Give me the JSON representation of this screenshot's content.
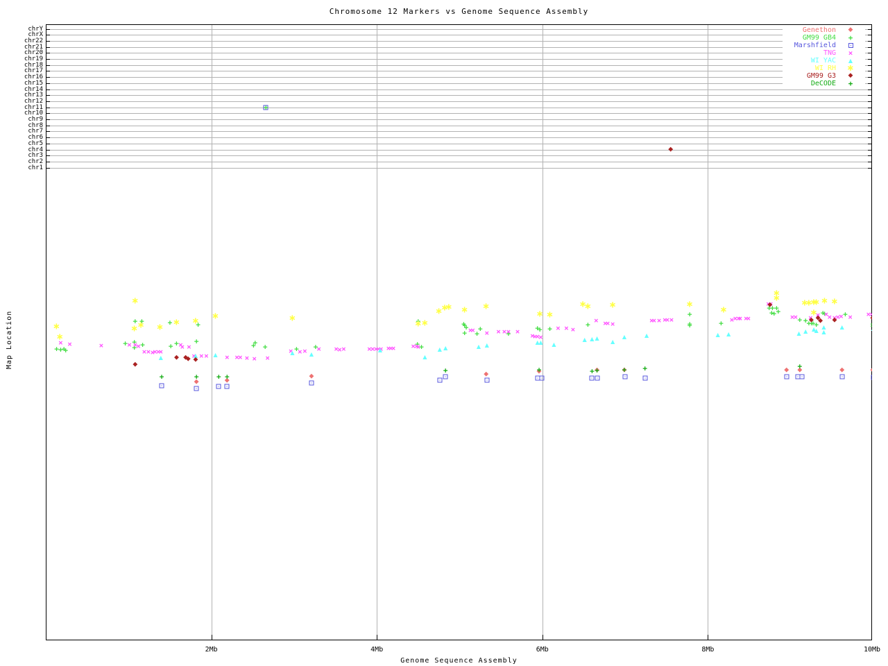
{
  "page_title": "Chromosome 12 Markers vs Genome Sequence Assembly",
  "chart_data": {
    "type": "scatter",
    "title": "Chromosome 12 Markers vs Genome Sequence Assembly",
    "xlabel": "Genome Sequence Assembly",
    "ylabel": "Map Location",
    "x_unit": "Mb",
    "xlim": [
      0,
      10
    ],
    "grid": "on",
    "legend_position": "top-right",
    "x_ticks": [
      {
        "label": "2Mb",
        "mb": 2
      },
      {
        "label": "4Mb",
        "mb": 4
      },
      {
        "label": "6Mb",
        "mb": 6
      },
      {
        "label": "8Mb",
        "mb": 8
      },
      {
        "label": "10Mb",
        "mb": 10
      }
    ],
    "y_axis_note": "Map Location axis has no numeric scale; point y values are screen pixels (top of image = 0). Top band is a categorical chromosome ladder.",
    "chrom_rows": [
      "chrY",
      "chrX",
      "chr22",
      "chr21",
      "chr20",
      "chr19",
      "chr18",
      "chr17",
      "chr16",
      "chr15",
      "chr14",
      "chr13",
      "chr12",
      "chr11",
      "chr10",
      "chr9",
      "chr8",
      "chr7",
      "chr6",
      "chr5",
      "chr4",
      "chr3",
      "chr2",
      "chr1"
    ],
    "series": [
      {
        "name": "Genethon",
        "color": "#ee7272",
        "marker": "diamond",
        "points": [
          [
            1.82,
            551
          ],
          [
            2.19,
            549
          ],
          [
            3.21,
            543
          ],
          [
            5.32,
            540
          ],
          [
            5.96,
            536
          ],
          [
            6.66,
            534
          ],
          [
            6.99,
            534
          ],
          [
            8.95,
            534
          ],
          [
            9.11,
            534
          ],
          [
            9.62,
            534
          ],
          [
            9.99,
            534
          ]
        ]
      },
      {
        "name": "GM99 GB4",
        "color": "#44dd44",
        "marker": "plus",
        "points": [
          [
            0.13,
            503
          ],
          [
            0.18,
            504
          ],
          [
            0.22,
            503
          ],
          [
            0.24,
            505
          ],
          [
            0.96,
            495
          ],
          [
            1.07,
            493
          ],
          [
            1.07,
            501
          ],
          [
            1.17,
            497
          ],
          [
            1.08,
            463
          ],
          [
            1.16,
            463
          ],
          [
            1.5,
            465
          ],
          [
            1.51,
            499
          ],
          [
            1.58,
            495
          ],
          [
            1.84,
            468
          ],
          [
            1.82,
            492
          ],
          [
            2.51,
            498
          ],
          [
            2.53,
            494
          ],
          [
            2.65,
            500
          ],
          [
            3.03,
            503
          ],
          [
            3.26,
            500
          ],
          [
            4.49,
            496
          ],
          [
            4.54,
            500
          ],
          [
            4.5,
            463
          ],
          [
            5.05,
            467
          ],
          [
            5.06,
            469
          ],
          [
            5.08,
            472
          ],
          [
            5.06,
            480
          ],
          [
            5.21,
            481
          ],
          [
            5.25,
            474
          ],
          [
            5.59,
            481
          ],
          [
            5.94,
            473
          ],
          [
            5.97,
            475
          ],
          [
            6.09,
            474
          ],
          [
            6.55,
            468
          ],
          [
            7.78,
            453
          ],
          [
            7.78,
            467
          ],
          [
            7.78,
            469
          ],
          [
            8.16,
            466
          ],
          [
            8.74,
            444
          ],
          [
            8.78,
            444
          ],
          [
            8.83,
            444
          ],
          [
            8.77,
            451
          ],
          [
            8.8,
            452
          ],
          [
            8.85,
            449
          ],
          [
            9.11,
            461
          ],
          [
            9.18,
            462
          ],
          [
            9.22,
            466
          ],
          [
            9.25,
            466
          ],
          [
            9.27,
            466
          ],
          [
            9.31,
            468
          ],
          [
            9.39,
            451
          ],
          [
            9.41,
            452
          ],
          [
            9.66,
            453
          ],
          [
            9.99,
            467
          ],
          [
            9.99,
            470
          ]
        ]
      },
      {
        "name": "Marshfield",
        "color": "#5555dd",
        "marker": "square",
        "points": [
          [
            1.4,
            556
          ],
          [
            1.82,
            560
          ],
          [
            2.09,
            557
          ],
          [
            2.19,
            557
          ],
          [
            3.21,
            552
          ],
          [
            4.76,
            548
          ],
          [
            4.83,
            543
          ],
          [
            5.33,
            548
          ],
          [
            5.94,
            545
          ],
          [
            5.99,
            545
          ],
          [
            6.6,
            545
          ],
          [
            6.66,
            545
          ],
          [
            7.0,
            543
          ],
          [
            7.24,
            545
          ],
          [
            8.95,
            543
          ],
          [
            9.09,
            543
          ],
          [
            9.14,
            543
          ],
          [
            9.62,
            543
          ],
          [
            10.0,
            544
          ]
        ]
      },
      {
        "name": "TNG",
        "color": "#ff55ff",
        "marker": "cross",
        "points": [
          [
            0.18,
            494
          ],
          [
            0.29,
            496
          ],
          [
            0.67,
            498
          ],
          [
            1.01,
            497
          ],
          [
            1.08,
            497
          ],
          [
            1.12,
            499
          ],
          [
            1.19,
            507
          ],
          [
            1.24,
            507
          ],
          [
            1.29,
            508
          ],
          [
            1.32,
            507
          ],
          [
            1.36,
            507
          ],
          [
            1.39,
            507
          ],
          [
            1.63,
            497
          ],
          [
            1.65,
            500
          ],
          [
            1.73,
            500
          ],
          [
            1.79,
            513
          ],
          [
            1.88,
            513
          ],
          [
            1.94,
            513
          ],
          [
            2.19,
            515
          ],
          [
            2.31,
            515
          ],
          [
            2.35,
            515
          ],
          [
            2.43,
            516
          ],
          [
            2.52,
            517
          ],
          [
            2.68,
            516
          ],
          [
            2.96,
            506
          ],
          [
            3.07,
            507
          ],
          [
            3.13,
            506
          ],
          [
            3.3,
            503
          ],
          [
            3.51,
            503
          ],
          [
            3.55,
            504
          ],
          [
            3.6,
            503
          ],
          [
            3.91,
            503
          ],
          [
            3.95,
            503
          ],
          [
            3.99,
            503
          ],
          [
            4.02,
            503
          ],
          [
            4.05,
            503
          ],
          [
            4.14,
            502
          ],
          [
            4.17,
            502
          ],
          [
            4.2,
            502
          ],
          [
            4.44,
            499
          ],
          [
            4.48,
            499
          ],
          [
            4.5,
            500
          ],
          [
            5.13,
            476
          ],
          [
            5.16,
            476
          ],
          [
            5.33,
            480
          ],
          [
            5.47,
            478
          ],
          [
            5.54,
            478
          ],
          [
            5.59,
            478
          ],
          [
            5.7,
            478
          ],
          [
            5.88,
            484
          ],
          [
            5.91,
            485
          ],
          [
            5.94,
            485
          ],
          [
            5.98,
            486
          ],
          [
            6.19,
            473
          ],
          [
            6.29,
            473
          ],
          [
            6.37,
            475
          ],
          [
            6.65,
            462
          ],
          [
            6.76,
            466
          ],
          [
            6.79,
            466
          ],
          [
            6.85,
            467
          ],
          [
            7.32,
            462
          ],
          [
            7.35,
            462
          ],
          [
            7.41,
            462
          ],
          [
            7.48,
            461
          ],
          [
            7.51,
            461
          ],
          [
            7.56,
            461
          ],
          [
            8.29,
            461
          ],
          [
            8.33,
            459
          ],
          [
            8.37,
            459
          ],
          [
            8.39,
            459
          ],
          [
            8.46,
            459
          ],
          [
            8.49,
            459
          ],
          [
            8.73,
            438
          ],
          [
            8.76,
            438
          ],
          [
            9.02,
            457
          ],
          [
            9.06,
            457
          ],
          [
            9.24,
            458
          ],
          [
            9.33,
            454
          ],
          [
            9.43,
            453
          ],
          [
            9.47,
            457
          ],
          [
            9.53,
            458
          ],
          [
            9.57,
            457
          ],
          [
            9.61,
            456
          ],
          [
            9.72,
            457
          ],
          [
            9.94,
            453
          ],
          [
            9.98,
            453
          ]
        ]
      },
      {
        "name": "WI YAC",
        "color": "#66ffff",
        "marker": "triangle",
        "points": [
          [
            1.39,
            516
          ],
          [
            1.81,
            513
          ],
          [
            2.05,
            512
          ],
          [
            2.98,
            509
          ],
          [
            3.21,
            511
          ],
          [
            4.04,
            505
          ],
          [
            4.58,
            515
          ],
          [
            4.76,
            504
          ],
          [
            4.83,
            502
          ],
          [
            5.23,
            500
          ],
          [
            5.33,
            498
          ],
          [
            5.94,
            494
          ],
          [
            5.98,
            494
          ],
          [
            6.14,
            497
          ],
          [
            6.51,
            490
          ],
          [
            6.6,
            489
          ],
          [
            6.66,
            488
          ],
          [
            6.85,
            493
          ],
          [
            6.99,
            486
          ],
          [
            7.26,
            484
          ],
          [
            8.12,
            483
          ],
          [
            8.25,
            482
          ],
          [
            9.1,
            481
          ],
          [
            9.18,
            478
          ],
          [
            9.28,
            475
          ],
          [
            9.31,
            477
          ],
          [
            9.4,
            472
          ],
          [
            9.4,
            479
          ],
          [
            9.62,
            472
          ],
          [
            10.0,
            474
          ]
        ]
      },
      {
        "name": "WI RH",
        "color": "#ffff44",
        "marker": "asterisk",
        "points": [
          [
            0.13,
            471
          ],
          [
            0.17,
            486
          ],
          [
            1.07,
            474
          ],
          [
            1.08,
            434
          ],
          [
            1.15,
            469
          ],
          [
            1.38,
            472
          ],
          [
            1.58,
            465
          ],
          [
            1.81,
            463
          ],
          [
            2.05,
            456
          ],
          [
            2.98,
            459
          ],
          [
            4.5,
            467
          ],
          [
            4.58,
            466
          ],
          [
            4.75,
            449
          ],
          [
            4.82,
            444
          ],
          [
            4.87,
            443
          ],
          [
            5.06,
            447
          ],
          [
            5.32,
            442
          ],
          [
            5.97,
            453
          ],
          [
            6.09,
            454
          ],
          [
            6.49,
            439
          ],
          [
            6.55,
            442
          ],
          [
            6.85,
            440
          ],
          [
            7.78,
            439
          ],
          [
            8.19,
            447
          ],
          [
            8.83,
            423
          ],
          [
            8.83,
            430
          ],
          [
            9.17,
            437
          ],
          [
            9.22,
            437
          ],
          [
            9.28,
            436
          ],
          [
            9.31,
            436
          ],
          [
            9.28,
            451
          ],
          [
            9.41,
            434
          ],
          [
            9.53,
            435
          ]
        ]
      },
      {
        "name": "GM99 G3",
        "color": "#aa2222",
        "marker": "diamond",
        "points": [
          [
            1.08,
            526
          ],
          [
            1.58,
            516
          ],
          [
            1.69,
            516
          ],
          [
            1.72,
            518
          ],
          [
            1.81,
            519
          ],
          [
            8.75,
            440
          ],
          [
            9.25,
            462
          ],
          [
            9.33,
            459
          ],
          [
            9.36,
            463
          ],
          [
            9.53,
            462
          ],
          [
            9.99,
            459
          ]
        ]
      },
      {
        "name": "DeCODE",
        "color": "#11aa11",
        "marker": "plus",
        "points": [
          [
            1.4,
            543
          ],
          [
            1.82,
            543
          ],
          [
            2.09,
            543
          ],
          [
            2.19,
            543
          ],
          [
            4.83,
            534
          ],
          [
            5.96,
            533
          ],
          [
            6.6,
            535
          ],
          [
            6.66,
            534
          ],
          [
            6.99,
            533
          ],
          [
            7.24,
            531
          ],
          [
            9.11,
            528
          ]
        ]
      }
    ],
    "chromosome_points": [
      {
        "series": "Marshfield",
        "chrom": "chr11",
        "x_mb": 2.66
      },
      {
        "series": "GM99 GB4",
        "chrom": "chr11",
        "x_mb": 2.66
      },
      {
        "series": "GM99 G3",
        "chrom": "chr4",
        "x_mb": 7.55
      }
    ]
  }
}
